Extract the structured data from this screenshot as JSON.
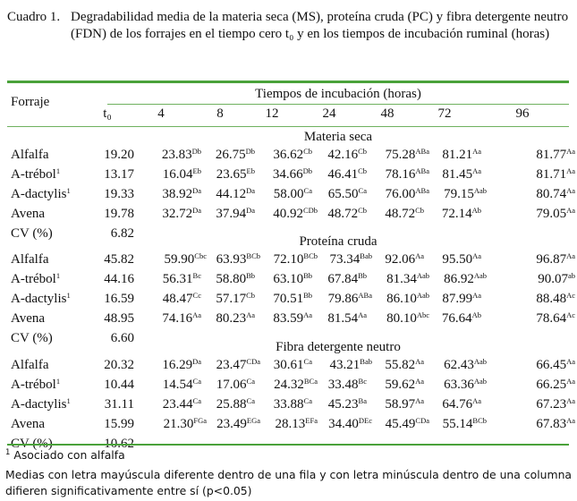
{
  "caption": {
    "label": "Cuadro 1.",
    "text": "Degradabilidad media de la materia seca (MS), proteína cruda (PC) y fibra detergente neutro (FDN) de los forrajes en el tiempo cero t₀ y en los tiempos de incubación ruminal (horas)"
  },
  "header": {
    "forraje": "Forraje",
    "tiempos": "Tiempos de incubación (horas)",
    "columns": [
      "t₀",
      "4",
      "8",
      "12",
      "24",
      "48",
      "72",
      "96"
    ]
  },
  "sections": [
    {
      "title": "Materia seca",
      "rows": [
        {
          "name": "Alfalfa",
          "sup": "",
          "cells": [
            [
              "19.20",
              ""
            ],
            [
              "23.83",
              "Db"
            ],
            [
              "26.75",
              "Db"
            ],
            [
              "36.62",
              "Cb"
            ],
            [
              "42.16",
              "Cb"
            ],
            [
              "75.28",
              "ABa"
            ],
            [
              "81.21",
              "Aa"
            ],
            [
              "81.77",
              "Aa"
            ]
          ]
        },
        {
          "name": "A-trébol",
          "sup": "1",
          "cells": [
            [
              "13.17",
              ""
            ],
            [
              "16.04",
              "Eb"
            ],
            [
              "23.65",
              "Eb"
            ],
            [
              "34.66",
              "Db"
            ],
            [
              "46.41",
              "Cb"
            ],
            [
              "78.16",
              "ABa"
            ],
            [
              "81.45",
              "Aa"
            ],
            [
              "81.71",
              "Aa"
            ]
          ]
        },
        {
          "name": "A-dactylis",
          "sup": "1",
          "cells": [
            [
              "19.33",
              ""
            ],
            [
              "38.92",
              "Da"
            ],
            [
              "44.12",
              "Da"
            ],
            [
              "58.00",
              "Ca"
            ],
            [
              "65.50",
              "Ca"
            ],
            [
              "76.00",
              "ABa"
            ],
            [
              "79.15",
              "Aab"
            ],
            [
              "80.74",
              "Aa"
            ]
          ]
        },
        {
          "name": "Avena",
          "sup": "",
          "cells": [
            [
              "19.78",
              ""
            ],
            [
              "32.72",
              "Da"
            ],
            [
              "37.94",
              "Da"
            ],
            [
              "40.92",
              "CDb"
            ],
            [
              "48.72",
              "Cb"
            ],
            [
              "48.72",
              "Cb"
            ],
            [
              "72.14",
              "Ab"
            ],
            [
              "79.05",
              "Aa"
            ]
          ]
        }
      ],
      "cv_label": "CV (%)",
      "cv": "6.82"
    },
    {
      "title": "Proteína cruda",
      "rows": [
        {
          "name": "Alfalfa",
          "sup": "",
          "cells": [
            [
              "45.82",
              ""
            ],
            [
              "59.90",
              "Cbc"
            ],
            [
              "63.93",
              "BCb"
            ],
            [
              "72.10",
              "BCb"
            ],
            [
              "73.34",
              "Bab"
            ],
            [
              "92.06",
              "Aa"
            ],
            [
              "95.50",
              "Aa"
            ],
            [
              "96.87",
              "Aa"
            ]
          ]
        },
        {
          "name": "A-trébol",
          "sup": "1",
          "cells": [
            [
              "44.16",
              ""
            ],
            [
              "56.31",
              "Bc"
            ],
            [
              "58.80",
              "Bb"
            ],
            [
              "63.10",
              "Bb"
            ],
            [
              "67.84",
              "Bb"
            ],
            [
              "81.34",
              "Aab"
            ],
            [
              "86.92",
              "Aab"
            ],
            [
              "90.07",
              "ab"
            ]
          ]
        },
        {
          "name": "A-dactylis",
          "sup": "1",
          "cells": [
            [
              "16.59",
              ""
            ],
            [
              "48.47",
              "Cc"
            ],
            [
              "57.17",
              "Cb"
            ],
            [
              "70.51",
              "Bb"
            ],
            [
              "79.86",
              "ABa"
            ],
            [
              "86.10",
              "Aab"
            ],
            [
              "87.99",
              "Aa"
            ],
            [
              "88.48",
              "Ac"
            ]
          ]
        },
        {
          "name": "Avena",
          "sup": "",
          "cells": [
            [
              "48.95",
              ""
            ],
            [
              "74.16",
              "Aa"
            ],
            [
              "80.23",
              "Aa"
            ],
            [
              "83.59",
              "Aa"
            ],
            [
              "81.54",
              "Aa"
            ],
            [
              "80.10",
              "Abc"
            ],
            [
              "76.64",
              "Ab"
            ],
            [
              "78.64",
              "Ac"
            ]
          ]
        }
      ],
      "cv_label": "CV (%)",
      "cv": "6.60"
    },
    {
      "title": "Fibra detergente neutro",
      "rows": [
        {
          "name": "Alfalfa",
          "sup": "",
          "cells": [
            [
              "20.32",
              ""
            ],
            [
              "16.29",
              "Da"
            ],
            [
              "23.47",
              "CDa"
            ],
            [
              "30.61",
              "Ca"
            ],
            [
              "43.21",
              "Bab"
            ],
            [
              "55.82",
              "Aa"
            ],
            [
              "62.43",
              "Aab"
            ],
            [
              "66.45",
              "Aa"
            ]
          ]
        },
        {
          "name": "A-trébol",
          "sup": "1",
          "cells": [
            [
              "10.44",
              ""
            ],
            [
              "14.54",
              "Ca"
            ],
            [
              "17.06",
              "Ca"
            ],
            [
              "24.32",
              "BCa"
            ],
            [
              "33.48",
              "Bc"
            ],
            [
              "59.62",
              "Aa"
            ],
            [
              "63.36",
              "Aab"
            ],
            [
              "66.25",
              "Aa"
            ]
          ]
        },
        {
          "name": "A-dactylis",
          "sup": "1",
          "cells": [
            [
              "31.11",
              ""
            ],
            [
              "23.44",
              "Ca"
            ],
            [
              "25.88",
              "Ca"
            ],
            [
              "33.88",
              "Ca"
            ],
            [
              "45.23",
              "Ba"
            ],
            [
              "58.97",
              "Aa"
            ],
            [
              "64.76",
              "Aa"
            ],
            [
              "67.23",
              "Aa"
            ]
          ]
        },
        {
          "name": "Avena",
          "sup": "",
          "cells": [
            [
              "15.99",
              ""
            ],
            [
              "21.30",
              "FGa"
            ],
            [
              "23.49",
              "EGa"
            ],
            [
              "28.13",
              "EFa"
            ],
            [
              "34.40",
              "DEc"
            ],
            [
              "45.49",
              "CDa"
            ],
            [
              "55.14",
              "BCb"
            ],
            [
              "67.83",
              "Aa"
            ]
          ]
        }
      ],
      "cv_label": "CV (%)",
      "cv": "10.62"
    }
  ],
  "footnotes": {
    "note1_sup": "1",
    "note1": "Asociado con alfalfa",
    "note2": "Medias con letra mayúscula diferente dentro de una fila y con letra minúscula dentro de una columna difieren significativamente entre sí (p<0.05)"
  },
  "colors": {
    "rule": "#4aa23a"
  }
}
